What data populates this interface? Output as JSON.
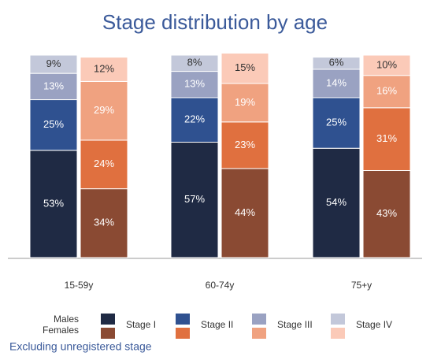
{
  "chart_data": {
    "type": "bar",
    "stacked": true,
    "title": "Stage distribution by age",
    "categories": [
      "15-59y",
      "60-74y",
      "75+y"
    ],
    "stages": [
      "Stage I",
      "Stage II",
      "Stage III",
      "Stage IV"
    ],
    "groups": [
      {
        "name": "Males",
        "series": [
          {
            "color": "#1f2a44",
            "values": [
              53,
              57,
              54
            ],
            "value_labels": [
              "53%",
              "57%",
              "54%"
            ]
          },
          {
            "color": "#2f5190",
            "values": [
              25,
              22,
              25
            ],
            "value_labels": [
              "25%",
              "22%",
              "25%"
            ]
          },
          {
            "color": "#9aa2c2",
            "values": [
              13,
              13,
              14
            ],
            "value_labels": [
              "13%",
              "13%",
              "14%"
            ]
          },
          {
            "color": "#c3c8da",
            "values": [
              9,
              8,
              6
            ],
            "value_labels": [
              "9%",
              "8%",
              "6%"
            ]
          }
        ]
      },
      {
        "name": "Females",
        "series": [
          {
            "color": "#8a4a33",
            "values": [
              34,
              44,
              43
            ],
            "value_labels": [
              "34%",
              "44%",
              "43%"
            ]
          },
          {
            "color": "#e0703f",
            "values": [
              24,
              23,
              31
            ],
            "value_labels": [
              "24%",
              "23%",
              "31%"
            ]
          },
          {
            "color": "#f0a280",
            "values": [
              29,
              19,
              16
            ],
            "value_labels": [
              "29%",
              "19%",
              "16%"
            ]
          },
          {
            "color": "#fbcab8",
            "values": [
              12,
              15,
              10
            ],
            "value_labels": [
              "12%",
              "15%",
              "10%"
            ]
          }
        ]
      }
    ],
    "ylim": [
      0,
      100
    ],
    "note": "Excluding unregistered stage"
  }
}
